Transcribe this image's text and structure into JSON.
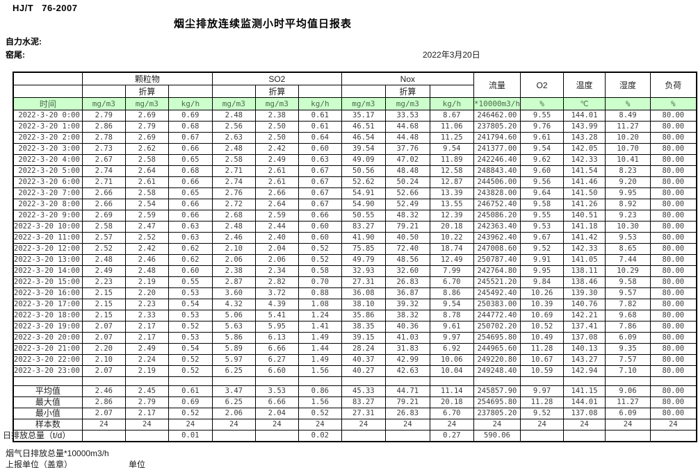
{
  "page": {
    "standard": "HJ/T 76-2007",
    "title": "烟尘排放连续监测小时平均值日报表",
    "company": "自力水泥:",
    "location": "窑尾:",
    "date": "2022年3月20日"
  },
  "table": {
    "time_header": "时间",
    "converted_label": "折算",
    "groups": [
      {
        "label": "颗粒物"
      },
      {
        "label": "SO2"
      },
      {
        "label": "Nox"
      }
    ],
    "single_headers": {
      "flow": "流量",
      "o2": "O2",
      "temperature": "温度",
      "humidity": "湿度",
      "load": "负荷"
    },
    "units": [
      "mg/m3",
      "mg/m3",
      "kg/h",
      "mg/m3",
      "mg/m3",
      "kg/h",
      "mg/m3",
      "mg/m3",
      "kg/h",
      "*10000m3/h",
      "%",
      "℃",
      "%",
      "%"
    ],
    "rows": [
      {
        "time": "2022-3-20 0:00",
        "values": [
          "2.79",
          "2.69",
          "0.69",
          "2.48",
          "2.38",
          "0.61",
          "35.17",
          "33.53",
          "8.67",
          "246462.00",
          "9.55",
          "144.01",
          "8.49",
          "80.00"
        ]
      },
      {
        "time": "2022-3-20 1:00",
        "values": [
          "2.86",
          "2.79",
          "0.68",
          "2.56",
          "2.50",
          "0.61",
          "46.51",
          "44.68",
          "11.06",
          "237805.20",
          "9.76",
          "143.99",
          "11.27",
          "80.00"
        ]
      },
      {
        "time": "2022-3-20 2:00",
        "values": [
          "2.78",
          "2.69",
          "0.67",
          "2.63",
          "2.50",
          "0.64",
          "46.54",
          "44.48",
          "11.25",
          "241794.60",
          "9.61",
          "143.28",
          "10.20",
          "80.00"
        ]
      },
      {
        "time": "2022-3-20 3:00",
        "values": [
          "2.73",
          "2.62",
          "0.66",
          "2.48",
          "2.42",
          "0.60",
          "39.54",
          "37.76",
          "9.54",
          "241377.00",
          "9.54",
          "142.05",
          "10.70",
          "80.00"
        ]
      },
      {
        "time": "2022-3-20 4:00",
        "values": [
          "2.67",
          "2.58",
          "0.65",
          "2.58",
          "2.49",
          "0.63",
          "49.09",
          "47.02",
          "11.89",
          "242246.40",
          "9.62",
          "142.33",
          "10.41",
          "80.00"
        ]
      },
      {
        "time": "2022-3-20 5:00",
        "values": [
          "2.74",
          "2.64",
          "0.68",
          "2.71",
          "2.61",
          "0.67",
          "50.56",
          "48.48",
          "12.58",
          "248843.40",
          "9.60",
          "141.54",
          "8.23",
          "80.00"
        ]
      },
      {
        "time": "2022-3-20 6:00",
        "values": [
          "2.71",
          "2.61",
          "0.66",
          "2.74",
          "2.61",
          "0.67",
          "52.62",
          "50.24",
          "12.87",
          "244506.00",
          "9.56",
          "141.46",
          "9.20",
          "80.00"
        ]
      },
      {
        "time": "2022-3-20 7:00",
        "values": [
          "2.66",
          "2.58",
          "0.65",
          "2.76",
          "2.66",
          "0.67",
          "54.91",
          "52.66",
          "13.39",
          "243828.00",
          "9.64",
          "141.50",
          "9.95",
          "80.00"
        ]
      },
      {
        "time": "2022-3-20 8:00",
        "values": [
          "2.66",
          "2.54",
          "0.66",
          "2.72",
          "2.64",
          "0.67",
          "54.90",
          "52.49",
          "13.55",
          "246752.40",
          "9.58",
          "141.26",
          "8.92",
          "80.00"
        ]
      },
      {
        "time": "2022-3-20 9:00",
        "values": [
          "2.69",
          "2.59",
          "0.66",
          "2.68",
          "2.59",
          "0.66",
          "50.55",
          "48.32",
          "12.39",
          "245086.20",
          "9.55",
          "140.51",
          "9.23",
          "80.00"
        ]
      },
      {
        "time": "2022-3-20 10:00",
        "values": [
          "2.58",
          "2.47",
          "0.63",
          "2.48",
          "2.44",
          "0.60",
          "83.27",
          "79.21",
          "20.18",
          "242363.40",
          "9.53",
          "141.18",
          "10.30",
          "80.00"
        ]
      },
      {
        "time": "2022-3-20 11:00",
        "values": [
          "2.57",
          "2.52",
          "0.63",
          "2.46",
          "2.40",
          "0.60",
          "41.90",
          "40.50",
          "10.22",
          "243962.40",
          "9.67",
          "141.42",
          "9.53",
          "80.00"
        ]
      },
      {
        "time": "2022-3-20 12:00",
        "values": [
          "2.52",
          "2.42",
          "0.62",
          "2.10",
          "2.04",
          "0.52",
          "75.85",
          "72.40",
          "18.74",
          "247008.60",
          "9.52",
          "142.33",
          "8.65",
          "80.00"
        ]
      },
      {
        "time": "2022-3-20 13:00",
        "values": [
          "2.48",
          "2.46",
          "0.62",
          "2.06",
          "2.06",
          "0.52",
          "49.79",
          "48.56",
          "12.49",
          "250787.40",
          "9.91",
          "141.05",
          "7.44",
          "80.00"
        ]
      },
      {
        "time": "2022-3-20 14:00",
        "values": [
          "2.49",
          "2.48",
          "0.60",
          "2.38",
          "2.34",
          "0.58",
          "32.93",
          "32.60",
          "7.99",
          "242764.80",
          "9.95",
          "138.11",
          "10.29",
          "80.00"
        ]
      },
      {
        "time": "2022-3-20 15:00",
        "values": [
          "2.23",
          "2.19",
          "0.55",
          "2.87",
          "2.82",
          "0.70",
          "27.31",
          "26.83",
          "6.70",
          "245521.20",
          "9.84",
          "138.46",
          "9.58",
          "80.00"
        ]
      },
      {
        "time": "2022-3-20 16:00",
        "values": [
          "2.15",
          "2.20",
          "0.53",
          "3.60",
          "3.72",
          "0.88",
          "36.08",
          "36.87",
          "8.86",
          "245492.40",
          "10.26",
          "139.30",
          "9.57",
          "80.00"
        ]
      },
      {
        "time": "2022-3-20 17:00",
        "values": [
          "2.15",
          "2.23",
          "0.54",
          "4.32",
          "4.39",
          "1.08",
          "38.10",
          "39.32",
          "9.54",
          "250383.00",
          "10.39",
          "140.76",
          "7.82",
          "80.00"
        ]
      },
      {
        "time": "2022-3-20 18:00",
        "values": [
          "2.15",
          "2.33",
          "0.53",
          "5.06",
          "5.41",
          "1.24",
          "35.86",
          "38.32",
          "8.78",
          "244772.40",
          "10.69",
          "142.21",
          "9.68",
          "80.00"
        ]
      },
      {
        "time": "2022-3-20 19:00",
        "values": [
          "2.07",
          "2.17",
          "0.52",
          "5.63",
          "5.95",
          "1.41",
          "38.35",
          "40.36",
          "9.61",
          "250702.20",
          "10.52",
          "137.41",
          "7.86",
          "80.00"
        ]
      },
      {
        "time": "2022-3-20 20:00",
        "values": [
          "2.07",
          "2.17",
          "0.53",
          "5.86",
          "6.13",
          "1.49",
          "39.15",
          "41.03",
          "9.97",
          "254695.80",
          "10.49",
          "137.08",
          "6.09",
          "80.00"
        ]
      },
      {
        "time": "2022-3-20 21:00",
        "values": [
          "2.20",
          "2.49",
          "0.54",
          "5.89",
          "6.66",
          "1.44",
          "28.24",
          "31.83",
          "6.92",
          "244965.60",
          "11.28",
          "140.13",
          "9.35",
          "80.00"
        ]
      },
      {
        "time": "2022-3-20 22:00",
        "values": [
          "2.10",
          "2.24",
          "0.52",
          "5.97",
          "6.27",
          "1.49",
          "40.37",
          "42.99",
          "10.06",
          "249220.80",
          "10.67",
          "143.27",
          "7.57",
          "80.00"
        ]
      },
      {
        "time": "2022-3-20 23:00",
        "values": [
          "2.07",
          "2.19",
          "0.52",
          "6.25",
          "6.60",
          "1.56",
          "40.27",
          "42.63",
          "10.04",
          "249248.40",
          "10.59",
          "142.94",
          "7.10",
          "80.00"
        ]
      }
    ],
    "summary": [
      {
        "label": "平均值",
        "values": [
          "2.46",
          "2.45",
          "0.61",
          "3.47",
          "3.53",
          "0.86",
          "45.33",
          "44.71",
          "11.14",
          "245857.90",
          "9.97",
          "141.15",
          "9.06",
          "80.00"
        ]
      },
      {
        "label": "最大值",
        "values": [
          "2.86",
          "2.79",
          "0.69",
          "6.25",
          "6.66",
          "1.56",
          "83.27",
          "79.21",
          "20.18",
          "254695.80",
          "11.28",
          "144.01",
          "11.27",
          "80.00"
        ]
      },
      {
        "label": "最小值",
        "values": [
          "2.07",
          "2.17",
          "0.52",
          "2.06",
          "2.04",
          "0.52",
          "27.31",
          "26.83",
          "6.70",
          "237805.20",
          "9.52",
          "137.08",
          "6.09",
          "80.00"
        ]
      },
      {
        "label": "样本数",
        "values": [
          "24",
          "24",
          "24",
          "24",
          "24",
          "24",
          "24",
          "24",
          "24",
          "24",
          "24",
          "24",
          "24",
          "24"
        ]
      },
      {
        "label": "日排放总量（t/d）",
        "values": [
          "",
          "",
          "0.01",
          "",
          "",
          "0.02",
          "",
          "",
          "0.27",
          "590.06",
          "",
          "",
          "",
          ""
        ]
      }
    ]
  },
  "footer": {
    "flue_gas_total": "烟气日排放总量*10000m3/h",
    "report_unit": "上报单位（盖章）",
    "unit": "单位"
  },
  "colors": {
    "header_green": "#ccffcc",
    "border": "#000000"
  }
}
